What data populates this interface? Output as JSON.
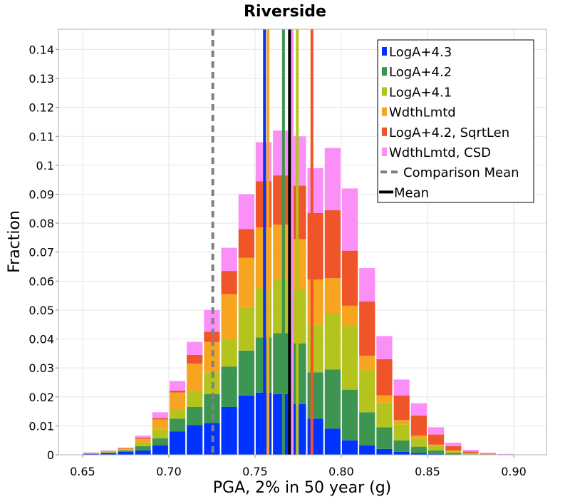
{
  "chart_data": {
    "type": "bar",
    "stacked": true,
    "title": "Riverside",
    "xlabel": "PGA, 2% in 50 year (g)",
    "ylabel": "Fraction",
    "xlim": [
      0.636,
      0.919
    ],
    "ylim": [
      0,
      0.147
    ],
    "grid": true,
    "legend_position": "top-right",
    "bin_width": 0.01,
    "x_ticks": [
      {
        "value": 0.65,
        "label": "0.65"
      },
      {
        "value": 0.7,
        "label": "0.70"
      },
      {
        "value": 0.75,
        "label": "0.75"
      },
      {
        "value": 0.8,
        "label": "0.80"
      },
      {
        "value": 0.85,
        "label": "0.85"
      },
      {
        "value": 0.9,
        "label": "0.90"
      }
    ],
    "y_ticks": [
      {
        "value": 0,
        "label": "0"
      },
      {
        "value": 0.01,
        "label": "0.01"
      },
      {
        "value": 0.02,
        "label": "0.02"
      },
      {
        "value": 0.03,
        "label": "0.03"
      },
      {
        "value": 0.04,
        "label": "0.04"
      },
      {
        "value": 0.05,
        "label": "0.05"
      },
      {
        "value": 0.06,
        "label": "0.06"
      },
      {
        "value": 0.07,
        "label": "0.07"
      },
      {
        "value": 0.08,
        "label": "0.08"
      },
      {
        "value": 0.09,
        "label": "0.09"
      },
      {
        "value": 0.1,
        "label": "0.1"
      },
      {
        "value": 0.11,
        "label": "0.11"
      },
      {
        "value": 0.12,
        "label": "0.12"
      },
      {
        "value": 0.13,
        "label": "0.13"
      },
      {
        "value": 0.14,
        "label": "0.14"
      }
    ],
    "x": [
      0.645,
      0.655,
      0.665,
      0.675,
      0.685,
      0.695,
      0.705,
      0.715,
      0.725,
      0.735,
      0.745,
      0.755,
      0.765,
      0.775,
      0.785,
      0.795,
      0.805,
      0.815,
      0.825,
      0.835,
      0.845,
      0.855,
      0.865,
      0.875,
      0.885,
      0.895,
      0.905
    ],
    "series": [
      {
        "name": "LogA+4.3",
        "color": "#0033ff",
        "values": [
          0,
          0.0003,
          0.0005,
          0.001,
          0.0015,
          0.0032,
          0.008,
          0.0103,
          0.011,
          0.0165,
          0.0205,
          0.0215,
          0.021,
          0.0175,
          0.0125,
          0.009,
          0.005,
          0.0032,
          0.002,
          0.001,
          0.0006,
          0.0003,
          0.0001,
          0,
          0,
          0,
          0
        ]
      },
      {
        "name": "LogA+4.2",
        "color": "#3d9552",
        "values": [
          0,
          0.0001,
          0.0003,
          0.0005,
          0.0015,
          0.0025,
          0.0045,
          0.0062,
          0.01,
          0.014,
          0.0155,
          0.019,
          0.021,
          0.021,
          0.016,
          0.0205,
          0.0175,
          0.0115,
          0.0075,
          0.004,
          0.0022,
          0.0012,
          0.0005,
          0.0002,
          0.0001,
          0,
          0
        ]
      },
      {
        "name": "LogA+4.1",
        "color": "#b4c41c",
        "values": [
          0,
          0.0001,
          0.0002,
          0.0003,
          0.0012,
          0.003,
          0.003,
          0.0055,
          0.0075,
          0.0095,
          0.015,
          0.017,
          0.0185,
          0.0185,
          0.0165,
          0.0195,
          0.022,
          0.0145,
          0.0085,
          0.0055,
          0.0028,
          0.0015,
          0.0006,
          0.0003,
          0.0001,
          0,
          0
        ]
      },
      {
        "name": "WdthLmtd",
        "color": "#f7a521",
        "values": [
          0,
          0.0001,
          0.0002,
          0.0003,
          0.0013,
          0.0035,
          0.006,
          0.0095,
          0.0105,
          0.0155,
          0.017,
          0.021,
          0.019,
          0.0175,
          0.0155,
          0.012,
          0.007,
          0.005,
          0.0025,
          0.0015,
          0.001,
          0.0005,
          0.0003,
          0.0001,
          0,
          0,
          0
        ]
      },
      {
        "name": "LogA+4.2, SqrtLen",
        "color": "#f0552a",
        "values": [
          0,
          0.0001,
          0.0001,
          0.0002,
          0.0004,
          0.0005,
          0.0007,
          0.003,
          0.0035,
          0.008,
          0.01,
          0.016,
          0.017,
          0.0185,
          0.023,
          0.0235,
          0.019,
          0.0188,
          0.0125,
          0.0085,
          0.007,
          0.0035,
          0.0015,
          0.0005,
          0.0002,
          0.0001,
          0
        ]
      },
      {
        "name": "WdthLmtd, CSD",
        "color": "#fb8ff7",
        "values": [
          0,
          0.0001,
          0.0002,
          0.0002,
          0.0007,
          0.002,
          0.0033,
          0.0045,
          0.0075,
          0.008,
          0.012,
          0.0135,
          0.0155,
          0.017,
          0.0155,
          0.0215,
          0.0215,
          0.0115,
          0.008,
          0.0055,
          0.0042,
          0.0025,
          0.0012,
          0.0006,
          0.0003,
          0.0002,
          0.0001
        ]
      }
    ],
    "mean_lines": [
      {
        "name": "LogA+4.3",
        "color": "#0033ff",
        "x": 0.7555
      },
      {
        "name": "WdthLmtd",
        "color": "#f7a521",
        "x": 0.7575
      },
      {
        "name": "LogA+4.2",
        "color": "#3d9552",
        "x": 0.7665
      },
      {
        "name": "WdthLmtd, CSD",
        "color": "#fb8ff7",
        "x": 0.7715
      },
      {
        "name": "LogA+4.1",
        "color": "#b4c41c",
        "x": 0.7745
      },
      {
        "name": "LogA+4.2, SqrtLen",
        "color": "#f0552a",
        "x": 0.783
      }
    ],
    "comparison_mean": {
      "label": "Comparison Mean",
      "x": 0.7255,
      "color": "#808080"
    },
    "mean": {
      "label": "Mean",
      "x": 0.77,
      "color": "#000000"
    }
  }
}
